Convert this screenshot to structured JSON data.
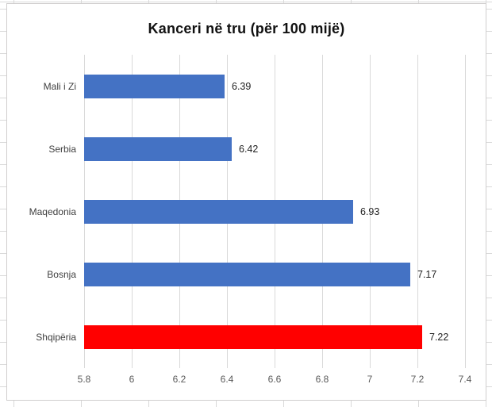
{
  "chart_data": {
    "type": "bar",
    "orientation": "horizontal",
    "title": "Kanceri në tru (për 100 mijë)",
    "categories": [
      "Mali i Zi",
      "Serbia",
      "Maqedonia",
      "Bosnja",
      "Shqipëria"
    ],
    "values": [
      6.39,
      6.42,
      6.93,
      7.17,
      7.22
    ],
    "data_labels": [
      "6.39",
      "6.42",
      "6.93",
      "7.17",
      "7.22"
    ],
    "bar_colors": [
      "#4472C4",
      "#4472C4",
      "#4472C4",
      "#4472C4",
      "#FF0000"
    ],
    "xlabel": "",
    "ylabel": "",
    "xlim": [
      5.8,
      7.4
    ],
    "x_ticks": [
      5.8,
      6.0,
      6.2,
      6.4,
      6.6,
      6.8,
      7.0,
      7.2,
      7.4
    ],
    "x_tick_labels": [
      "5.8",
      "6",
      "6.2",
      "6.4",
      "6.6",
      "6.8",
      "7",
      "7.2",
      "7.4"
    ],
    "grid": true,
    "legend_position": "none",
    "colors": {
      "bar_default": "#4472C4",
      "bar_highlight": "#FF0000",
      "gridline": "#d9d9d9",
      "tick_label": "#595959",
      "category_label": "#3f3f3f",
      "value_label": "#1f1f1f",
      "chart_border": "#d0cece",
      "background": "#ffffff"
    }
  }
}
